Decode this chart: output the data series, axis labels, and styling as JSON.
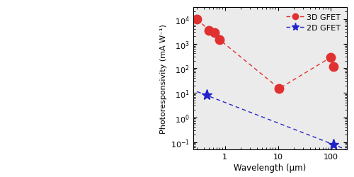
{
  "xlabel": "Wavelength (μm)",
  "ylabel": "Photoresponsivity (mA W⁻¹)",
  "xlim": [
    0.25,
    200
  ],
  "ylim": [
    0.05,
    30000
  ],
  "red_x": [
    0.3,
    0.5,
    0.63,
    0.78,
    10.6,
    100,
    110
  ],
  "red_y": [
    10000,
    3500,
    2800,
    1500,
    15,
    280,
    120
  ],
  "blue_x": [
    0.45,
    110
  ],
  "blue_y": [
    8,
    0.08
  ],
  "red_color": "#e03030",
  "blue_color": "#2222cc",
  "legend_3D": "3D GFET",
  "legend_2D": "2D GFET",
  "marker_size_red": 9,
  "marker_size_blue": 11,
  "plot_bg": "#ebebeb",
  "fig_bg": "#ffffff"
}
